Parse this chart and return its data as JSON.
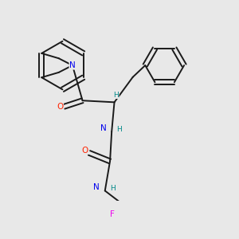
{
  "bg_color": "#e8e8e8",
  "bond_color": "#1a1a1a",
  "bond_width": 1.4,
  "atom_colors": {
    "N": "#0000ee",
    "O": "#ff2200",
    "F": "#ee00ee",
    "H": "#008888"
  },
  "figsize": [
    3.0,
    3.0
  ],
  "dpi": 100
}
